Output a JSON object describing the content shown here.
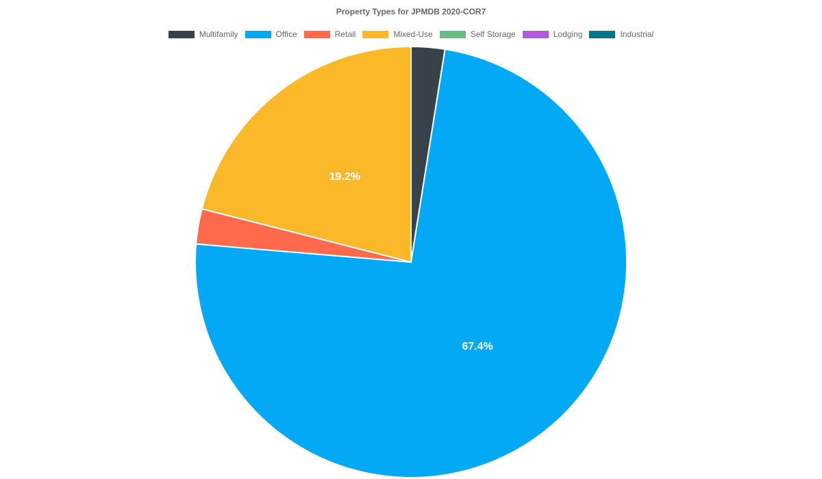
{
  "chart_data": {
    "type": "pie",
    "title": "Property Types for JPMDB 2020-COR7",
    "legend_position": "top",
    "series": [
      {
        "name": "Multifamily",
        "value": 2.3,
        "color": "#37424a",
        "label": ""
      },
      {
        "name": "Office",
        "value": 67.4,
        "color": "#03a9f4",
        "label": "67.4%"
      },
      {
        "name": "Retail",
        "value": 2.4,
        "color": "#fe6a4b",
        "label": ""
      },
      {
        "name": "Mixed-Use",
        "value": 19.2,
        "color": "#fbb829",
        "label": "19.2%"
      },
      {
        "name": "Self Storage",
        "value": 0,
        "color": "#6abd86",
        "label": ""
      },
      {
        "name": "Lodging",
        "value": 0,
        "color": "#b259e0",
        "label": ""
      },
      {
        "name": "Industrial",
        "value": 0,
        "color": "#00768a",
        "label": ""
      }
    ]
  }
}
